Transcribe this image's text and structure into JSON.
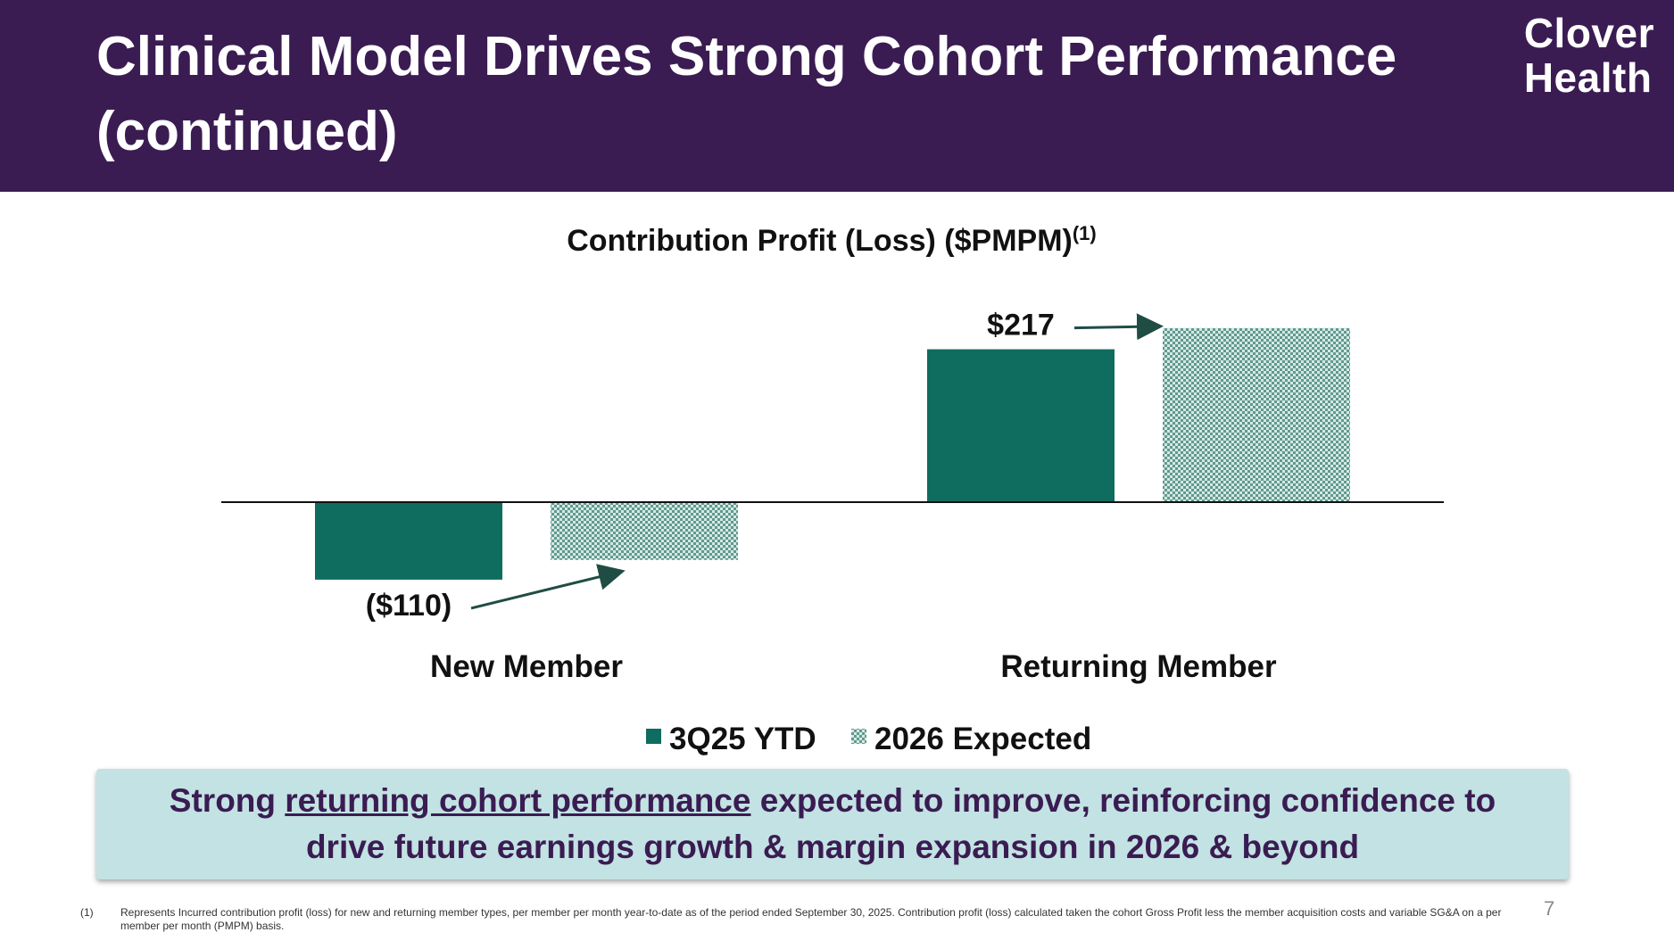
{
  "header": {
    "title": "Clinical Model Drives Strong Cohort Performance (continued)",
    "logo_line1": "Clover",
    "logo_line2": "Health"
  },
  "colors": {
    "header_bg": "#3a1c52",
    "bar_solid": "#0e6d5e",
    "bar_pattern_fg": "#5e9a8f",
    "bar_pattern_bg": "#d7e8e4",
    "arrow": "#1f4d43",
    "callout_bg": "#c3e2e3",
    "callout_text": "#3a1c52"
  },
  "chart_data": {
    "type": "bar",
    "title": "Contribution Profit (Loss) ($PMPM)",
    "title_superscript": "(1)",
    "categories": [
      "New Member",
      "Returning Member"
    ],
    "series": [
      {
        "name": "3Q25 YTD",
        "values": [
          -110,
          217
        ],
        "labels": [
          "($110)",
          "$217"
        ],
        "style": "solid"
      },
      {
        "name": "2026 Expected",
        "values": [
          -82,
          247
        ],
        "labels": [
          "",
          ""
        ],
        "style": "pattern"
      }
    ],
    "ylim": [
      -140,
      260
    ],
    "xlabel": "",
    "ylabel": "",
    "grid": false,
    "legend_position": "bottom-center",
    "annotations": [
      "arrow from ($110) to 2026 Expected New Member bar",
      "arrow from $217 to 2026 Expected Returning Member bar"
    ]
  },
  "callout": {
    "prefix": "Strong ",
    "underlined": "returning cohort performance",
    "suffix": " expected to improve, reinforcing confidence to drive future earnings growth & margin expansion in 2026 & beyond"
  },
  "footnote": {
    "marker": "(1)",
    "text": "Represents Incurred contribution profit (loss) for new and returning member types, per member per month year-to-date as of the period ended September 30, 2025. Contribution profit (loss) calculated taken the cohort Gross Profit less the member acquisition costs and variable SG&A on a per member per month (PMPM) basis."
  },
  "page_number": "7"
}
